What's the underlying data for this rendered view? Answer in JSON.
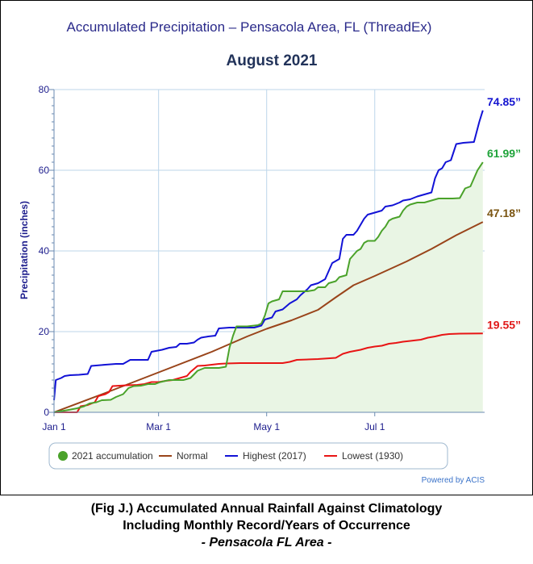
{
  "chart_data": {
    "type": "line",
    "title": "Accumulated Precipitation – Pensacola Area, FL (ThreadEx)",
    "subtitle": "August 2021",
    "ylabel": "Precipitation (inches)",
    "xlabel": "",
    "ylim": [
      0,
      80
    ],
    "yticks": [
      "0",
      "20",
      "40",
      "60",
      "80"
    ],
    "xlim": [
      1,
      244
    ],
    "xticks": [
      {
        "label": "Jan 1",
        "day": 1
      },
      {
        "label": "Mar 1",
        "day": 60
      },
      {
        "label": "May 1",
        "day": 121
      },
      {
        "label": "Jul 1",
        "day": 182
      }
    ],
    "grid": true,
    "legend_position": "bottom",
    "series": [
      {
        "name": "2021 accumulation",
        "color": "#4aa22a",
        "fill": "#e9f5e4",
        "end_label": "61.99”",
        "points": [
          [
            1,
            0
          ],
          [
            8,
            0.5
          ],
          [
            14,
            1
          ],
          [
            18,
            1.5
          ],
          [
            21,
            2.2
          ],
          [
            25,
            2.5
          ],
          [
            28,
            3
          ],
          [
            33,
            3.1
          ],
          [
            36,
            3.8
          ],
          [
            40,
            4.5
          ],
          [
            43,
            6
          ],
          [
            46,
            6.5
          ],
          [
            50,
            6.6
          ],
          [
            54,
            7
          ],
          [
            58,
            7
          ],
          [
            61,
            7.5
          ],
          [
            66,
            8
          ],
          [
            70,
            8
          ],
          [
            74,
            8
          ],
          [
            78,
            8.5
          ],
          [
            82,
            10.3
          ],
          [
            86,
            11
          ],
          [
            90,
            11
          ],
          [
            94,
            11
          ],
          [
            98,
            11.3
          ],
          [
            100,
            16
          ],
          [
            102,
            19
          ],
          [
            104,
            21.3
          ],
          [
            110,
            21.3
          ],
          [
            116,
            21.6
          ],
          [
            118,
            22
          ],
          [
            120,
            24
          ],
          [
            122,
            27
          ],
          [
            124,
            27.5
          ],
          [
            128,
            28
          ],
          [
            130,
            30
          ],
          [
            134,
            30
          ],
          [
            140,
            30
          ],
          [
            144,
            30
          ],
          [
            148,
            30.3
          ],
          [
            150,
            31
          ],
          [
            154,
            31
          ],
          [
            156,
            32
          ],
          [
            160,
            32.5
          ],
          [
            162,
            33.5
          ],
          [
            166,
            34
          ],
          [
            168,
            38
          ],
          [
            170,
            39
          ],
          [
            172,
            40
          ],
          [
            174,
            40.5
          ],
          [
            176,
            42
          ],
          [
            178,
            42.5
          ],
          [
            182,
            42.5
          ],
          [
            184,
            43.5
          ],
          [
            186,
            45
          ],
          [
            188,
            46
          ],
          [
            190,
            47.5
          ],
          [
            192,
            48
          ],
          [
            196,
            48.5
          ],
          [
            198,
            50
          ],
          [
            200,
            51
          ],
          [
            202,
            51.5
          ],
          [
            206,
            52
          ],
          [
            210,
            52
          ],
          [
            214,
            52.5
          ],
          [
            218,
            53
          ],
          [
            222,
            53
          ],
          [
            226,
            53
          ],
          [
            230,
            53.1
          ],
          [
            233,
            55.5
          ],
          [
            236,
            56
          ],
          [
            238,
            58
          ],
          [
            240,
            60
          ],
          [
            243,
            61.99
          ]
        ]
      },
      {
        "name": "Normal",
        "color": "#99441a",
        "end_label": "47.18”",
        "points": [
          [
            1,
            0
          ],
          [
            30,
            4.8
          ],
          [
            60,
            9.9
          ],
          [
            90,
            15
          ],
          [
            110,
            18.8
          ],
          [
            121,
            20.7
          ],
          [
            135,
            22.8
          ],
          [
            150,
            25.4
          ],
          [
            160,
            28.5
          ],
          [
            170,
            31.5
          ],
          [
            182,
            33.8
          ],
          [
            200,
            37.4
          ],
          [
            214,
            40.5
          ],
          [
            228,
            43.9
          ],
          [
            243,
            47.18
          ]
        ]
      },
      {
        "name": "Highest (2017)",
        "color": "#1212d6",
        "end_label": "74.85”",
        "points": [
          [
            1,
            3
          ],
          [
            2,
            8
          ],
          [
            5,
            8.5
          ],
          [
            7,
            9
          ],
          [
            10,
            9.2
          ],
          [
            15,
            9.3
          ],
          [
            20,
            9.5
          ],
          [
            22,
            11.5
          ],
          [
            30,
            11.8
          ],
          [
            36,
            12
          ],
          [
            40,
            12
          ],
          [
            44,
            13
          ],
          [
            54,
            13
          ],
          [
            56,
            15
          ],
          [
            62,
            15.5
          ],
          [
            66,
            16
          ],
          [
            70,
            16.2
          ],
          [
            72,
            17
          ],
          [
            76,
            17
          ],
          [
            80,
            17.3
          ],
          [
            82,
            18
          ],
          [
            84,
            18.5
          ],
          [
            88,
            18.8
          ],
          [
            92,
            19
          ],
          [
            94,
            20.8
          ],
          [
            100,
            21
          ],
          [
            108,
            21
          ],
          [
            114,
            21
          ],
          [
            118,
            21.5
          ],
          [
            120,
            23
          ],
          [
            124,
            23.5
          ],
          [
            126,
            25
          ],
          [
            130,
            25.5
          ],
          [
            134,
            27
          ],
          [
            138,
            28
          ],
          [
            140,
            29
          ],
          [
            144,
            30.5
          ],
          [
            146,
            31.5
          ],
          [
            150,
            32
          ],
          [
            154,
            33
          ],
          [
            156,
            35
          ],
          [
            158,
            37
          ],
          [
            162,
            38
          ],
          [
            164,
            43
          ],
          [
            166,
            44
          ],
          [
            170,
            44
          ],
          [
            172,
            45
          ],
          [
            176,
            48
          ],
          [
            178,
            49
          ],
          [
            182,
            49.5
          ],
          [
            186,
            50
          ],
          [
            188,
            51
          ],
          [
            192,
            51.3
          ],
          [
            196,
            52
          ],
          [
            198,
            52.5
          ],
          [
            202,
            52.8
          ],
          [
            206,
            53.5
          ],
          [
            210,
            54
          ],
          [
            214,
            54.5
          ],
          [
            216,
            58
          ],
          [
            218,
            60
          ],
          [
            220,
            60.5
          ],
          [
            222,
            62
          ],
          [
            225,
            62.5
          ],
          [
            228,
            66.5
          ],
          [
            232,
            66.8
          ],
          [
            238,
            67
          ],
          [
            241,
            72
          ],
          [
            243,
            74.85
          ]
        ]
      },
      {
        "name": "Lowest (1930)",
        "color": "#e81515",
        "end_label": "19.55”",
        "points": [
          [
            1,
            0
          ],
          [
            14,
            0
          ],
          [
            16,
            1.5
          ],
          [
            20,
            1.8
          ],
          [
            24,
            2.5
          ],
          [
            26,
            4
          ],
          [
            30,
            4.5
          ],
          [
            32,
            5
          ],
          [
            34,
            6.5
          ],
          [
            38,
            6.6
          ],
          [
            42,
            6.7
          ],
          [
            48,
            6.8
          ],
          [
            52,
            7
          ],
          [
            56,
            7.5
          ],
          [
            60,
            7.5
          ],
          [
            64,
            7.8
          ],
          [
            68,
            8
          ],
          [
            72,
            8.5
          ],
          [
            76,
            9
          ],
          [
            78,
            10
          ],
          [
            82,
            11.5
          ],
          [
            86,
            11.6
          ],
          [
            90,
            11.8
          ],
          [
            94,
            12
          ],
          [
            98,
            12.1
          ],
          [
            106,
            12.2
          ],
          [
            118,
            12.2
          ],
          [
            130,
            12.2
          ],
          [
            134,
            12.5
          ],
          [
            138,
            13
          ],
          [
            150,
            13.2
          ],
          [
            160,
            13.5
          ],
          [
            164,
            14.5
          ],
          [
            168,
            15
          ],
          [
            174,
            15.5
          ],
          [
            178,
            16
          ],
          [
            182,
            16.3
          ],
          [
            186,
            16.5
          ],
          [
            190,
            17
          ],
          [
            194,
            17.2
          ],
          [
            198,
            17.5
          ],
          [
            204,
            17.8
          ],
          [
            208,
            18
          ],
          [
            212,
            18.5
          ],
          [
            216,
            18.8
          ],
          [
            220,
            19.2
          ],
          [
            224,
            19.4
          ],
          [
            230,
            19.5
          ],
          [
            243,
            19.55
          ]
        ]
      }
    ],
    "credit": "Powered by ACIS"
  },
  "caption": {
    "line1": "(Fig J.) Accumulated Annual Rainfall Against  Climatology",
    "line2": "Including Monthly Record/Years of Occurrence",
    "line3": "- Pensacola FL Area -"
  }
}
